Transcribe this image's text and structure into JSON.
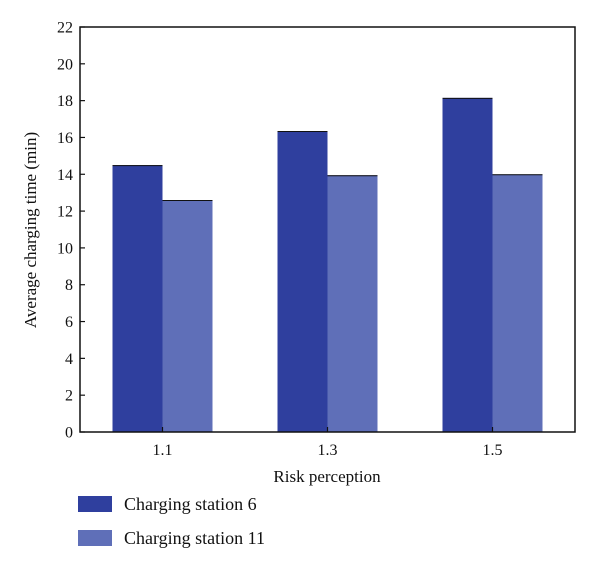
{
  "chart_data": {
    "type": "bar",
    "categories": [
      "1.1",
      "1.3",
      "1.5"
    ],
    "series": [
      {
        "name": "Charging station 6",
        "values": [
          14.5,
          16.35,
          18.15
        ],
        "color": "#2f3f9e"
      },
      {
        "name": "Charging station 11",
        "values": [
          12.6,
          13.95,
          14.0
        ],
        "color": "#5f6fb8"
      }
    ],
    "xlabel": "Risk perception",
    "ylabel": "Average charging time (min)",
    "ylim": [
      0,
      22
    ],
    "yticks": [
      "0",
      "2",
      "4",
      "6",
      "8",
      "10",
      "12",
      "14",
      "16",
      "18",
      "20",
      "22"
    ],
    "grid": false,
    "legend_position": "bottom-left"
  }
}
